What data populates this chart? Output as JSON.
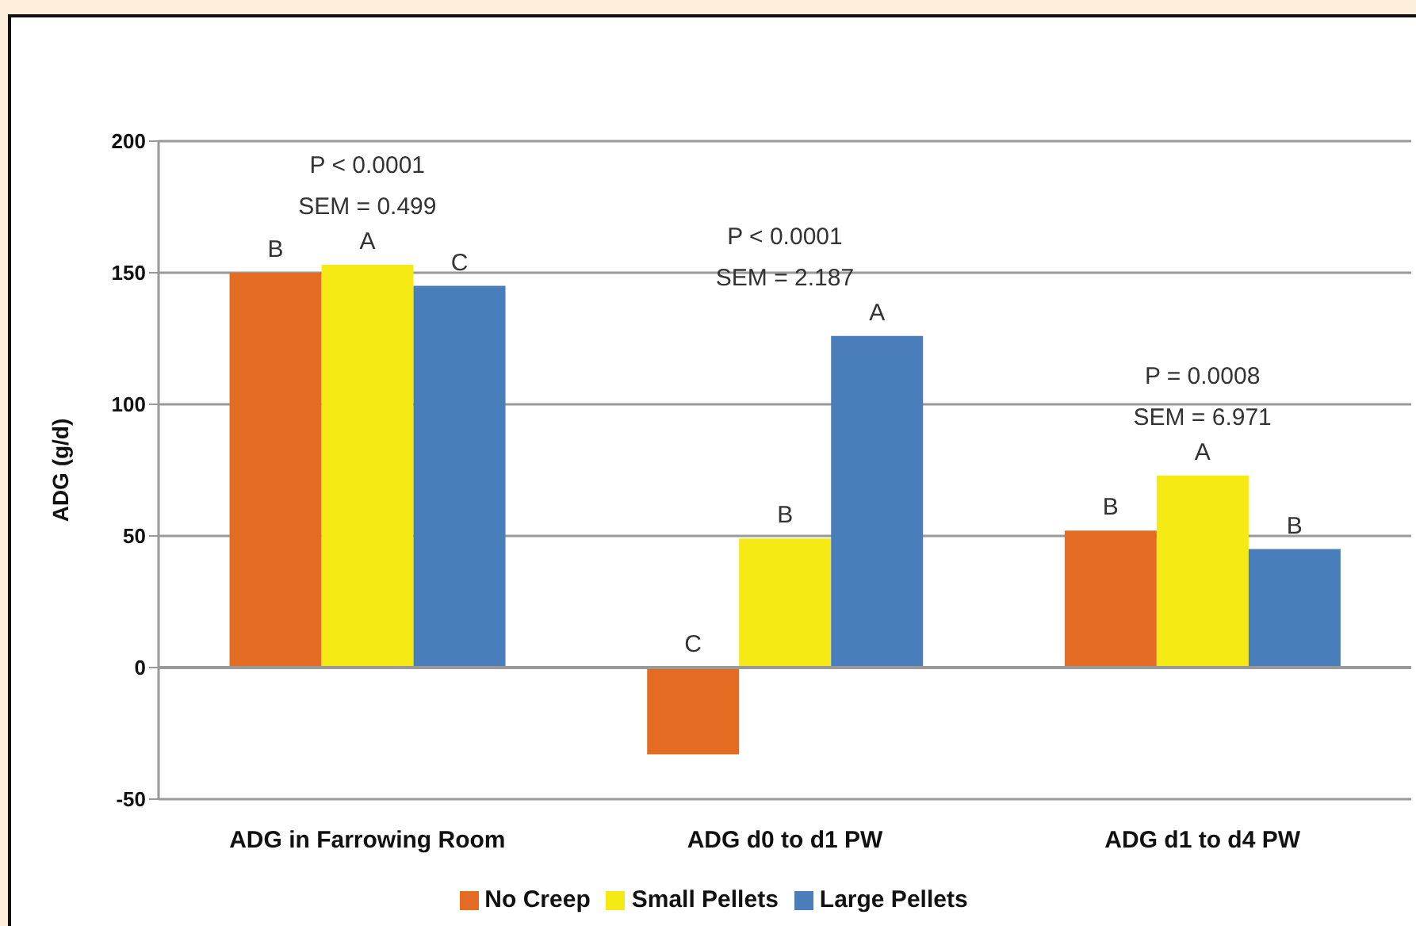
{
  "chart_data": {
    "type": "bar",
    "ylabel": "ADG (g/d)",
    "categories": [
      "ADG in Farrowing Room",
      "ADG d0 to d1 PW",
      "ADG d1 to d4 PW"
    ],
    "series": [
      {
        "name": "No Creep",
        "color": "#e36c22",
        "values": [
          150,
          -33,
          52
        ],
        "value_labels": [
          "B",
          "C",
          "B"
        ]
      },
      {
        "name": "Small Pellets",
        "color": "#f5ea14",
        "values": [
          153,
          49,
          73
        ],
        "value_labels": [
          "A",
          "B",
          "A"
        ]
      },
      {
        "name": "Large Pellets",
        "color": "#4a7ebb",
        "values": [
          145,
          126,
          45
        ],
        "value_labels": [
          "C",
          "A",
          "B"
        ]
      }
    ],
    "ylim": [
      -50,
      200
    ],
    "yticks": [
      -50,
      0,
      50,
      100,
      150,
      200
    ],
    "grid": "y",
    "legend": "bottom",
    "annotations": [
      "P < 0.0001",
      "SEM = 0.499",
      "P < 0.0001",
      "SEM = 2.187",
      "P = 0.0008",
      "SEM = 6.971"
    ]
  }
}
